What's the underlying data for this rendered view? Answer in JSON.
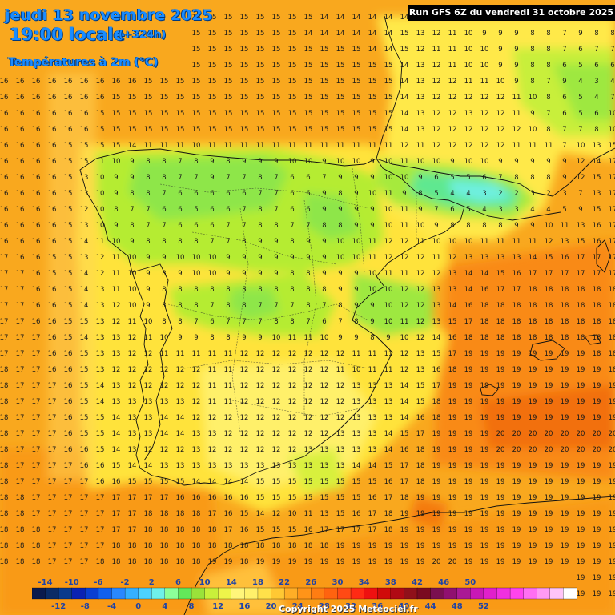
{
  "header": {
    "date": "jeudi 13 novembre 2025",
    "time": "19:00 locale",
    "lead": "(+324h)",
    "variable": "Températures à 2m (°C)",
    "run": "Run GFS 6Z du vendredi 31 octobre 2025"
  },
  "legend": {
    "top_labels": [
      "-14",
      "-10",
      "-6",
      "-2",
      "2",
      "6",
      "10",
      "14",
      "18",
      "22",
      "26",
      "30",
      "34",
      "38",
      "42",
      "46",
      "50"
    ],
    "bottom_labels": [
      "-12",
      "-8",
      "-4",
      "0",
      "4",
      "8",
      "12",
      "16",
      "20",
      "24",
      "28",
      "32",
      "36",
      "40",
      "44",
      "48",
      "52"
    ],
    "colors": [
      "#0b1a4d",
      "#0b2b66",
      "#0a3a8c",
      "#0a22b3",
      "#0a3fd1",
      "#1160ee",
      "#2a88ff",
      "#35b0ff",
      "#4cd2ff",
      "#6ff0ea",
      "#8cff9a",
      "#63e85a",
      "#9ae23a",
      "#c9ef3a",
      "#eef54a",
      "#fff57a",
      "#fff06a",
      "#ffe14a",
      "#ffc833",
      "#ffae26",
      "#ff9418",
      "#ff7d12",
      "#ff630f",
      "#ff4a14",
      "#ff2a14",
      "#ef1010",
      "#d00a0a",
      "#b00a14",
      "#90101a",
      "#7a0a20",
      "#7a1050",
      "#901070",
      "#aa1a95",
      "#c818b5",
      "#e020cc",
      "#f030e0",
      "#ff44ee",
      "#ff6ff2",
      "#ff9af5",
      "#ffc4f8",
      "#ffffff"
    ]
  },
  "grid_values": [
    "16 16 16 16 16 16 16 15 15 15 15 15 15 15 15 15 15 15 15 15 14 14 14 14 14 14 14 15 15 15 14 14 14 14 14 14 14 14 14",
    "16 16 16 16 16 16 16 16 15 15 15 15 15 15 15 15 15 15 15 14 14 14 14 14 14 15 13 12 11 10 9 9 9 8 8 7 9 8 8",
    "16 16 16 16 16 16 16 16 16 15 15 15 15 15 15 15 15 15 15 15 15 15 15 14 14 15 12 11 11 10 10 9 9 8 8 7 6 7 7",
    "16 16 16 16 16 16 16 16 16 15 15 15 15 15 15 15 15 15 15 15 15 15 15 15 15 14 13 12 11 10 10 9 9 8 8 6 5 6 6",
    "16 16 16 16 16 16 16 16 16 15 15 15 15 15 15 15 15 15 15 15 15 15 15 15 15 14 13 12 12 11 11 10 9 8 7 9 4 3 4",
    "16 16 16 16 16 16 16 15 15 15 15 15 15 15 15 15 15 15 15 15 15 15 15 15 15 14 13 12 12 12 12 12 11 10 8 6 5 4 7",
    "16 16 16 16 16 16 15 15 15 15 15 15 15 15 15 15 15 15 15 15 15 15 15 15 15 14 13 12 12 13 12 12 11 9 7 6 5 6 10",
    "16 16 16 16 16 16 15 15 15 15 15 15 15 15 15 15 15 15 15 15 15 15 15 15 15 14 13 12 12 12 12 12 12 10 8 7 7 8 10",
    "16 16 16 16 15 15 15 15 14 11 11 11 10 11 11 11 11 11 11 11 11 11 11 11 11 12 11 12 12 12 12 12 11 11 11 7 10 13 15",
    "16 16 16 16 15 15 11 10 9 8 8 7 8 9 8 9 9 9 10 10 9 10 10 9 10 11 10 10 9 10 10 9 9 9 9 9 12 14 17",
    "16 16 16 16 15 13 10 9 9 8 8 7 7 9 7 7 8 7 6 6 7 9 9 9 10 10 9 6 5 5 6 7 8 8 8 9 12 15 17",
    "16 16 16 16 15 13 10 9 8 8 7 6 6 6 6 6 7 7 6 6 9 8 9 10 11 9 8 5 4 4 3 2 2 3 2 3 7 13 17",
    "16 16 16 16 15 12 10 8 7 7 6 6 5 6 6 7 8 7 6 6 9 9 9 9 10 11 9 7 6 5 4 3 3 4 4 5 9 15 17",
    "16 16 16 16 15 13 10 9 8 7 7 6 6 6 7 7 8 8 7 7 8 8 9 9 10 11 10 9 8 8 8 8 9 9 10 11 13 16 17",
    "16 16 16 16 15 14 11 10 9 8 8 8 8 7 7 8 9 9 8 9 9 10 10 11 12 12 11 10 10 10 11 11 11 11 12 13 15 16 17",
    "17 16 16 15 15 13 12 11 10 9 9 10 10 10 9 9 9 9 9 9 9 10 10 11 12 12 12 11 12 13 13 13 13 14 15 16 17 17 17",
    "17 17 16 15 15 14 12 11 10 9 8 9 10 10 9 9 9 9 8 8 9 9 9 10 11 11 12 12 13 14 14 15 16 17 17 17 17 17 17",
    "17 17 16 16 15 14 13 11 10 9 8 8 8 8 8 8 8 8 8 8 8 9 9 10 10 12 12 13 13 14 16 17 17 18 18 18 18 18 18",
    "17 17 16 16 15 14 13 12 10 9 8 8 8 7 8 8 7 7 7 8 7 8 9 9 10 12 12 13 14 16 18 18 18 18 18 18 18 18 18",
    "17 17 16 16 15 15 13 12 11 10 8 8 7 6 7 7 7 8 8 7 6 7 8 9 10 11 12 13 15 17 18 18 18 18 18 18 18 18 18",
    "17 17 17 16 15 14 13 13 12 11 10 9 9 8 8 9 9 10 11 11 10 9 9 8 9 10 12 14 16 18 18 18 18 18 18 18 18 18 18",
    "17 17 17 16 16 15 13 13 12 12 11 11 11 11 11 12 12 12 12 12 12 12 11 11 11 12 13 15 17 19 19 19 19 19 19 19 19 18 18",
    "18 17 17 16 16 15 13 12 12 12 12 12 12 11 11 12 12 12 12 12 12 11 10 11 11 12 13 16 18 19 19 19 19 19 19 19 19 19 18",
    "18 17 17 17 16 15 14 13 12 12 12 12 12 11 11 12 12 12 12 12 12 12 13 13 13 14 15 17 19 19 19 19 19 19 19 19 19 19 19",
    "18 17 17 17 16 15 14 13 13 13 13 13 12 11 11 12 12 12 12 12 12 12 13 13 13 14 15 18 19 19 19 19 19 19 19 19 19 19 19",
    "18 17 17 17 16 15 15 14 13 13 14 14 12 12 12 12 12 12 12 12 12 12 13 13 13 14 16 18 19 19 19 19 19 19 19 19 19 19 19",
    "18 17 17 17 16 15 15 14 13 13 14 14 13 13 12 12 12 12 12 12 12 13 13 13 14 15 17 19 19 19 19 20 20 20 20 20 20 20 20",
    "18 17 17 17 16 16 15 14 13 12 12 12 13 12 12 12 12 12 12 13 13 13 13 13 14 16 18 19 19 19 19 20 20 20 20 20 20 20 20",
    "18 17 17 17 17 16 16 15 14 14 13 13 13 13 13 13 13 13 13 13 13 13 14 14 15 17 18 19 19 19 19 19 19 19 19 19 19 19 19",
    "18 17 17 17 17 17 16 16 15 15 15 15 14 14 14 14 15 15 15 15 15 15 15 15 16 17 18 19 19 19 19 19 19 19 19 19 19 19 19",
    "18 18 17 17 17 17 17 17 17 17 17 16 16 16 16 16 15 15 15 15 15 15 15 16 17 18 19 19 19 19 19 19 19 19 19 19 19 19 19",
    "18 18 17 17 17 17 17 17 17 18 18 18 18 17 16 15 14 12 10 11 13 15 16 17 18 19 19 19 19 19 19 19 19 19 19 19 19 19 19",
    "18 18 18 17 17 17 17 17 17 18 18 18 18 18 17 16 15 15 15 16 17 17 17 17 18 19 19 19 19 19 19 19 19 19 19 19 19 19 19",
    "18 18 18 17 17 17 17 18 18 18 18 18 18 18 18 18 18 18 18 18 18 19 19 19 19 19 19 19 19 19 19 19 19 19 19 19 19 19 19",
    "18 18 18 17 17 17 18 18 18 18 18 18 18 19 19 18 19 19 19 19 19 19 19 19 19 19 19 20 20 19 19 19 19 19 19 19 19 19 19",
    "18 18 18 18 18 18 18 18 18 19 19 19 19 19 19 19 19 19 19 19 19 19 19 19 19 19 19 19 19 19 19 19 19 19 19 19 19 19 19",
    "18 18 18 18 18 18 18 18 19 19 19 19 19 19 19 19 19 19 19 19 19 19 19 19 19 19 19 19 19 19 19 19 19 19 19 19 19 19 19"
  ],
  "copyright": "Copyright 2025 Meteociel.fr"
}
